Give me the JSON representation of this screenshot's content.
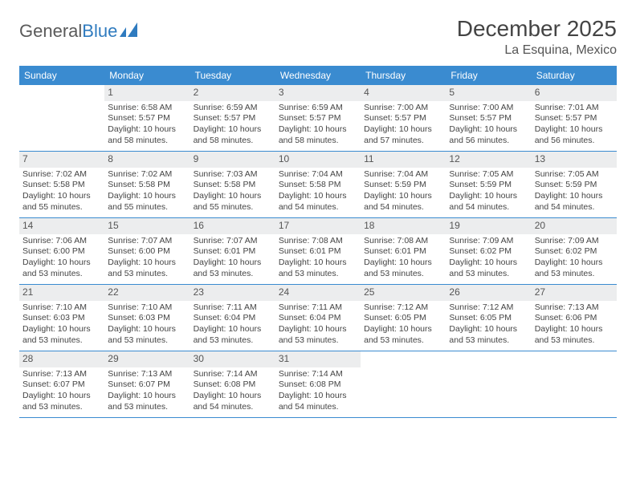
{
  "logo": {
    "part1": "General",
    "part2": "Blue"
  },
  "title": "December 2025",
  "location": "La Esquina, Mexico",
  "colors": {
    "header_bg": "#3a8bd0",
    "header_text": "#ffffff",
    "daynum_bg": "#ecedee",
    "border": "#3a8bd0",
    "body_text": "#444444",
    "logo_gray": "#5a5a5a",
    "logo_blue": "#2f7bbf"
  },
  "day_headers": [
    "Sunday",
    "Monday",
    "Tuesday",
    "Wednesday",
    "Thursday",
    "Friday",
    "Saturday"
  ],
  "weeks": [
    [
      {
        "n": "",
        "sr": "",
        "ss": "",
        "dl": "",
        "empty": true
      },
      {
        "n": "1",
        "sr": "Sunrise: 6:58 AM",
        "ss": "Sunset: 5:57 PM",
        "dl": "Daylight: 10 hours and 58 minutes."
      },
      {
        "n": "2",
        "sr": "Sunrise: 6:59 AM",
        "ss": "Sunset: 5:57 PM",
        "dl": "Daylight: 10 hours and 58 minutes."
      },
      {
        "n": "3",
        "sr": "Sunrise: 6:59 AM",
        "ss": "Sunset: 5:57 PM",
        "dl": "Daylight: 10 hours and 58 minutes."
      },
      {
        "n": "4",
        "sr": "Sunrise: 7:00 AM",
        "ss": "Sunset: 5:57 PM",
        "dl": "Daylight: 10 hours and 57 minutes."
      },
      {
        "n": "5",
        "sr": "Sunrise: 7:00 AM",
        "ss": "Sunset: 5:57 PM",
        "dl": "Daylight: 10 hours and 56 minutes."
      },
      {
        "n": "6",
        "sr": "Sunrise: 7:01 AM",
        "ss": "Sunset: 5:57 PM",
        "dl": "Daylight: 10 hours and 56 minutes."
      }
    ],
    [
      {
        "n": "7",
        "sr": "Sunrise: 7:02 AM",
        "ss": "Sunset: 5:58 PM",
        "dl": "Daylight: 10 hours and 55 minutes."
      },
      {
        "n": "8",
        "sr": "Sunrise: 7:02 AM",
        "ss": "Sunset: 5:58 PM",
        "dl": "Daylight: 10 hours and 55 minutes."
      },
      {
        "n": "9",
        "sr": "Sunrise: 7:03 AM",
        "ss": "Sunset: 5:58 PM",
        "dl": "Daylight: 10 hours and 55 minutes."
      },
      {
        "n": "10",
        "sr": "Sunrise: 7:04 AM",
        "ss": "Sunset: 5:58 PM",
        "dl": "Daylight: 10 hours and 54 minutes."
      },
      {
        "n": "11",
        "sr": "Sunrise: 7:04 AM",
        "ss": "Sunset: 5:59 PM",
        "dl": "Daylight: 10 hours and 54 minutes."
      },
      {
        "n": "12",
        "sr": "Sunrise: 7:05 AM",
        "ss": "Sunset: 5:59 PM",
        "dl": "Daylight: 10 hours and 54 minutes."
      },
      {
        "n": "13",
        "sr": "Sunrise: 7:05 AM",
        "ss": "Sunset: 5:59 PM",
        "dl": "Daylight: 10 hours and 54 minutes."
      }
    ],
    [
      {
        "n": "14",
        "sr": "Sunrise: 7:06 AM",
        "ss": "Sunset: 6:00 PM",
        "dl": "Daylight: 10 hours and 53 minutes."
      },
      {
        "n": "15",
        "sr": "Sunrise: 7:07 AM",
        "ss": "Sunset: 6:00 PM",
        "dl": "Daylight: 10 hours and 53 minutes."
      },
      {
        "n": "16",
        "sr": "Sunrise: 7:07 AM",
        "ss": "Sunset: 6:01 PM",
        "dl": "Daylight: 10 hours and 53 minutes."
      },
      {
        "n": "17",
        "sr": "Sunrise: 7:08 AM",
        "ss": "Sunset: 6:01 PM",
        "dl": "Daylight: 10 hours and 53 minutes."
      },
      {
        "n": "18",
        "sr": "Sunrise: 7:08 AM",
        "ss": "Sunset: 6:01 PM",
        "dl": "Daylight: 10 hours and 53 minutes."
      },
      {
        "n": "19",
        "sr": "Sunrise: 7:09 AM",
        "ss": "Sunset: 6:02 PM",
        "dl": "Daylight: 10 hours and 53 minutes."
      },
      {
        "n": "20",
        "sr": "Sunrise: 7:09 AM",
        "ss": "Sunset: 6:02 PM",
        "dl": "Daylight: 10 hours and 53 minutes."
      }
    ],
    [
      {
        "n": "21",
        "sr": "Sunrise: 7:10 AM",
        "ss": "Sunset: 6:03 PM",
        "dl": "Daylight: 10 hours and 53 minutes."
      },
      {
        "n": "22",
        "sr": "Sunrise: 7:10 AM",
        "ss": "Sunset: 6:03 PM",
        "dl": "Daylight: 10 hours and 53 minutes."
      },
      {
        "n": "23",
        "sr": "Sunrise: 7:11 AM",
        "ss": "Sunset: 6:04 PM",
        "dl": "Daylight: 10 hours and 53 minutes."
      },
      {
        "n": "24",
        "sr": "Sunrise: 7:11 AM",
        "ss": "Sunset: 6:04 PM",
        "dl": "Daylight: 10 hours and 53 minutes."
      },
      {
        "n": "25",
        "sr": "Sunrise: 7:12 AM",
        "ss": "Sunset: 6:05 PM",
        "dl": "Daylight: 10 hours and 53 minutes."
      },
      {
        "n": "26",
        "sr": "Sunrise: 7:12 AM",
        "ss": "Sunset: 6:05 PM",
        "dl": "Daylight: 10 hours and 53 minutes."
      },
      {
        "n": "27",
        "sr": "Sunrise: 7:13 AM",
        "ss": "Sunset: 6:06 PM",
        "dl": "Daylight: 10 hours and 53 minutes."
      }
    ],
    [
      {
        "n": "28",
        "sr": "Sunrise: 7:13 AM",
        "ss": "Sunset: 6:07 PM",
        "dl": "Daylight: 10 hours and 53 minutes."
      },
      {
        "n": "29",
        "sr": "Sunrise: 7:13 AM",
        "ss": "Sunset: 6:07 PM",
        "dl": "Daylight: 10 hours and 53 minutes."
      },
      {
        "n": "30",
        "sr": "Sunrise: 7:14 AM",
        "ss": "Sunset: 6:08 PM",
        "dl": "Daylight: 10 hours and 54 minutes."
      },
      {
        "n": "31",
        "sr": "Sunrise: 7:14 AM",
        "ss": "Sunset: 6:08 PM",
        "dl": "Daylight: 10 hours and 54 minutes."
      },
      {
        "n": "",
        "sr": "",
        "ss": "",
        "dl": "",
        "empty": true
      },
      {
        "n": "",
        "sr": "",
        "ss": "",
        "dl": "",
        "empty": true
      },
      {
        "n": "",
        "sr": "",
        "ss": "",
        "dl": "",
        "empty": true
      }
    ]
  ]
}
